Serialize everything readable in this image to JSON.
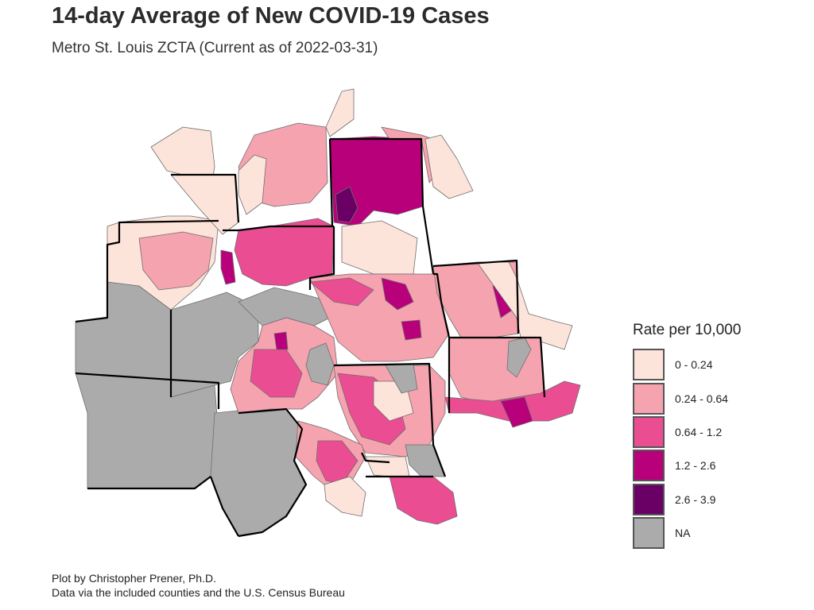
{
  "title": "14-day Average of New COVID-19 Cases",
  "subtitle": "Metro St. Louis ZCTA (Current as of 2022-03-31)",
  "legend": {
    "title": "Rate per 10,000",
    "items": [
      {
        "label": "0 - 0.24",
        "color": "#fde4da"
      },
      {
        "label": "0.24 - 0.64",
        "color": "#f5a3af"
      },
      {
        "label": "0.64 - 1.2",
        "color": "#ea4d92"
      },
      {
        "label": "1.2 - 2.6",
        "color": "#b8007a"
      },
      {
        "label": "2.6 - 3.9",
        "color": "#6a0065"
      },
      {
        "label": "NA",
        "color": "#ababab"
      }
    ]
  },
  "caption": {
    "line1": "Plot by Christopher Prener, Ph.D.",
    "line2": "Data via the included counties and the U.S. Census Bureau"
  }
}
